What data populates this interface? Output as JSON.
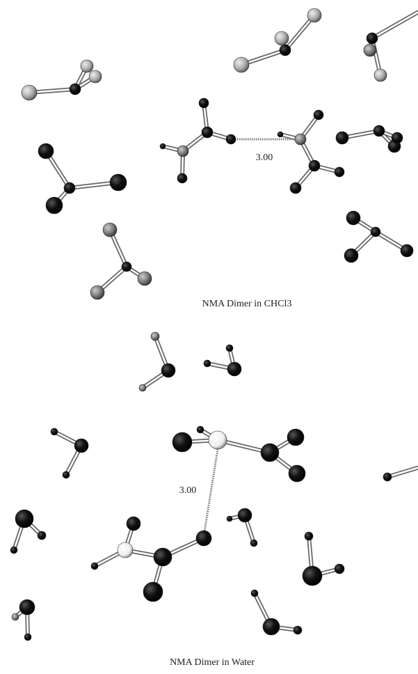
{
  "top_panel": {
    "distance_label": "3.00",
    "caption": "NMA Dimer in CHCl3"
  },
  "bottom_panel": {
    "distance_label": "3.00",
    "caption": "NMA Dimer in Water"
  }
}
